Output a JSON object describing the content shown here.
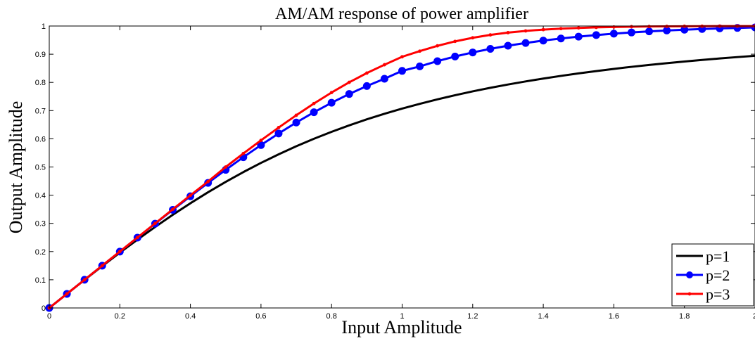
{
  "chart_data": {
    "type": "line",
    "title": "AM/AM response of power amplifier",
    "xlabel": "Input Amplitude",
    "ylabel": "Output Amplitude",
    "xlim": [
      0,
      2
    ],
    "ylim": [
      0,
      1
    ],
    "xticks": [
      0,
      0.2,
      0.4,
      0.6,
      0.8,
      1,
      1.2,
      1.4,
      1.6,
      1.8,
      2
    ],
    "xtick_labels": [
      "0",
      "0.2",
      "0.4",
      "0.6",
      "0.8",
      "1",
      "1.2",
      "1.4",
      "1.6",
      "1.8",
      "2"
    ],
    "yticks": [
      0,
      0.1,
      0.2,
      0.3,
      0.4,
      0.5,
      0.6,
      0.7,
      0.8,
      0.9,
      1
    ],
    "ytick_labels": [
      "0",
      "0.1",
      "0.2",
      "0.3",
      "0.4",
      "0.5",
      "0.6",
      "0.7",
      "0.8",
      "0.9",
      "1"
    ],
    "grid": false,
    "legend_position": "bottom-right",
    "x": [
      0,
      0.05,
      0.1,
      0.15,
      0.2,
      0.25,
      0.3,
      0.35,
      0.4,
      0.45,
      0.5,
      0.55,
      0.6,
      0.65,
      0.7,
      0.75,
      0.8,
      0.85,
      0.9,
      0.95,
      1,
      1.05,
      1.1,
      1.15,
      1.2,
      1.25,
      1.3,
      1.35,
      1.4,
      1.45,
      1.5,
      1.55,
      1.6,
      1.65,
      1.7,
      1.75,
      1.8,
      1.85,
      1.9,
      1.95,
      2
    ],
    "series": [
      {
        "name": "p=1",
        "color": "#000000",
        "marker": "none",
        "values": [
          0,
          0.05,
          0.0995,
          0.1483,
          0.1961,
          0.2425,
          0.2873,
          0.3304,
          0.3714,
          0.4104,
          0.4472,
          0.4819,
          0.5145,
          0.5449,
          0.5735,
          0.6,
          0.6247,
          0.6476,
          0.669,
          0.6887,
          0.7071,
          0.7241,
          0.7399,
          0.7546,
          0.7682,
          0.7809,
          0.7926,
          0.8035,
          0.8137,
          0.8231,
          0.832,
          0.8402,
          0.848,
          0.8552,
          0.8619,
          0.8682,
          0.8742,
          0.8797,
          0.8849,
          0.8898,
          0.8944
        ]
      },
      {
        "name": "p=2",
        "color": "#0000ff",
        "marker": "circle",
        "values": [
          0,
          0.05,
          0.1,
          0.15,
          0.1998,
          0.2495,
          0.299,
          0.3479,
          0.3962,
          0.4436,
          0.4899,
          0.5347,
          0.5778,
          0.6189,
          0.6577,
          0.6941,
          0.7278,
          0.7589,
          0.7872,
          0.8129,
          0.8409,
          0.8568,
          0.8754,
          0.8918,
          0.9063,
          0.919,
          0.9302,
          0.9399,
          0.9484,
          0.9558,
          0.9623,
          0.9679,
          0.9729,
          0.9771,
          0.9809,
          0.9841,
          0.9869,
          0.9894,
          0.9915,
          0.9933,
          0.9949
        ]
      },
      {
        "name": "p=3",
        "color": "#ff0000",
        "marker": "dot",
        "values": [
          0,
          0.05,
          0.1,
          0.15,
          0.2,
          0.25,
          0.2999,
          0.3498,
          0.3994,
          0.4485,
          0.5,
          0.5478,
          0.5945,
          0.6398,
          0.6835,
          0.7251,
          0.7641,
          0.8003,
          0.8332,
          0.8627,
          0.8909,
          0.9109,
          0.9298,
          0.9455,
          0.9583,
          0.9685,
          0.9765,
          0.9826,
          0.9872,
          0.9907,
          0.9933,
          0.9952,
          0.9966,
          0.9976,
          0.9983,
          0.9988,
          0.9992,
          0.9994,
          0.9996,
          0.9997,
          0.9998
        ]
      }
    ]
  }
}
